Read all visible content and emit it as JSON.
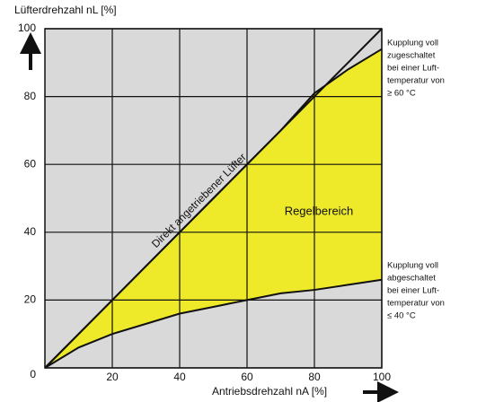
{
  "chart_data": {
    "type": "line",
    "y_label": "Lüfterdrehzahl nL [%]",
    "x_label": "Antriebsdrehzahl nA [%]",
    "x": [
      0,
      10,
      20,
      30,
      40,
      50,
      60,
      70,
      80,
      90,
      100
    ],
    "xlim": [
      0,
      100
    ],
    "ylim": [
      0,
      100
    ],
    "xticks": [
      20,
      40,
      60,
      80,
      100
    ],
    "yticks": [
      0,
      20,
      40,
      60,
      80,
      100
    ],
    "grid": true,
    "plot_background": "#d9d9d9",
    "series": [
      {
        "name": "Direkt angetriebener Lüfter",
        "color": "#111111",
        "values": [
          0,
          10,
          20,
          30,
          40,
          50,
          60,
          70,
          80,
          90,
          100
        ]
      },
      {
        "label_lines": [
          "Kupplung voll",
          "zugeschaltet",
          "bei einer Luft-",
          "temperatur von",
          "≥ 60 °C"
        ],
        "color": "#111111",
        "values": [
          0,
          10,
          20,
          30,
          40,
          50,
          60,
          70,
          81,
          88,
          94
        ]
      },
      {
        "label_lines": [
          "Kupplung voll",
          "abgeschaltet",
          "bei einer Luft-",
          "temperatur von",
          "≤ 40 °C"
        ],
        "color": "#111111",
        "values": [
          0,
          6,
          10,
          13,
          16,
          18,
          20,
          22,
          23,
          24.5,
          26
        ]
      }
    ],
    "fill_between": [
      1,
      2
    ],
    "fill_color": "#eeea2a",
    "area_label": "Regelbereich"
  }
}
